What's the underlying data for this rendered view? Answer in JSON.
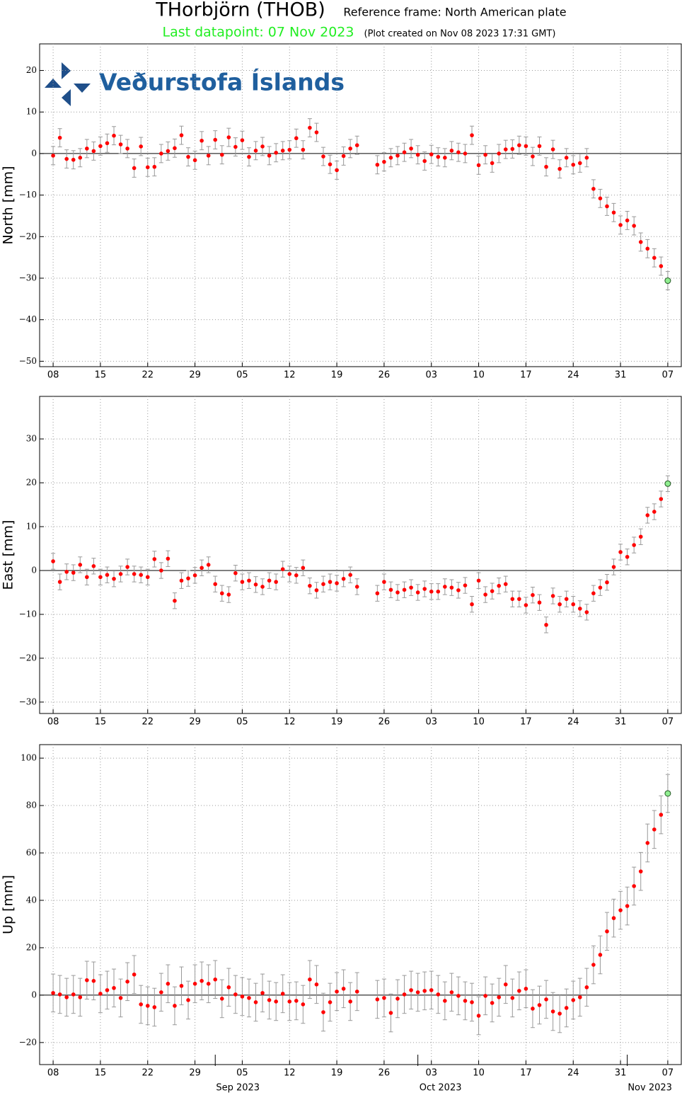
{
  "header": {
    "title": "THorbjörn (THOB)",
    "reference": "Reference frame: North American plate",
    "last_datapoint": "Last datapoint: 07 Nov 2023",
    "created": "(Plot created on Nov 08 2023 17:31 GMT)",
    "logo": "Veðurstofa Íslands"
  },
  "chart_data": [
    {
      "type": "scatter",
      "ylabel": "North [mm]",
      "grid": true,
      "x": [
        "2023-08-08",
        "2023-08-09",
        "2023-08-10",
        "2023-08-11",
        "2023-08-12",
        "2023-08-13",
        "2023-08-14",
        "2023-08-15",
        "2023-08-16",
        "2023-08-17",
        "2023-08-18",
        "2023-08-19",
        "2023-08-20",
        "2023-08-21",
        "2023-08-22",
        "2023-08-23",
        "2023-08-24",
        "2023-08-25",
        "2023-08-26",
        "2023-08-27",
        "2023-08-28",
        "2023-08-29",
        "2023-08-30",
        "2023-08-31",
        "2023-09-01",
        "2023-09-02",
        "2023-09-03",
        "2023-09-04",
        "2023-09-05",
        "2023-09-06",
        "2023-09-07",
        "2023-09-08",
        "2023-09-09",
        "2023-09-10",
        "2023-09-11",
        "2023-09-12",
        "2023-09-13",
        "2023-09-14",
        "2023-09-15",
        "2023-09-16",
        "2023-09-17",
        "2023-09-18",
        "2023-09-19",
        "2023-09-20",
        "2023-09-21",
        "2023-09-22",
        "2023-09-23",
        "2023-09-24",
        "2023-09-25",
        "2023-09-26",
        "2023-09-27",
        "2023-09-28",
        "2023-09-29",
        "2023-09-30",
        "2023-10-01",
        "2023-10-02",
        "2023-10-03",
        "2023-10-04",
        "2023-10-05",
        "2023-10-06",
        "2023-10-07",
        "2023-10-08",
        "2023-10-09",
        "2023-10-10",
        "2023-10-11",
        "2023-10-12",
        "2023-10-13",
        "2023-10-14",
        "2023-10-15",
        "2023-10-16",
        "2023-10-17",
        "2023-10-18",
        "2023-10-19",
        "2023-10-20",
        "2023-10-21",
        "2023-10-22",
        "2023-10-23",
        "2023-10-24",
        "2023-10-25",
        "2023-10-26",
        "2023-10-27",
        "2023-10-28",
        "2023-10-29",
        "2023-10-30",
        "2023-10-31",
        "2023-11-01",
        "2023-11-02",
        "2023-11-03",
        "2023-11-04",
        "2023-11-05",
        "2023-11-06",
        "2023-11-07"
      ],
      "series": [
        {
          "color": "#ff0000",
          "last_color": "#90ee90",
          "error": 2.2,
          "values": [
            -0.5,
            3.8,
            -1.3,
            -1.5,
            -1,
            1.2,
            0.6,
            1.8,
            2.5,
            4.3,
            2.2,
            1.2,
            -3.5,
            1.7,
            -3.3,
            -3.2,
            0,
            0.6,
            1.3,
            4.4,
            -0.8,
            -1.6,
            3.1,
            -0.5,
            3.3,
            -0.3,
            3.9,
            1.6,
            3.2,
            -0.8,
            0.7,
            1.7,
            -0.5,
            0.2,
            0.7,
            0.9,
            3.7,
            0.9,
            6.2,
            5.1,
            -0.7,
            -2.6,
            -4,
            -0.6,
            1.2,
            2.0,
            null,
            null,
            -2.7,
            -2,
            -1,
            -0.5,
            0.3,
            1.2,
            -0.3,
            -1.8,
            -0.2,
            -0.8,
            -1,
            0.7,
            0.3,
            0,
            4.4,
            -2.8,
            -0.3,
            -2.3,
            0,
            1,
            1.1,
            2,
            1.8,
            -0.7,
            1.8,
            -3.2,
            1,
            -3.7,
            -1,
            -2.7,
            -2.3,
            -1,
            -8.5,
            -10.8,
            -12.7,
            -14.2,
            -17.2,
            -16.1,
            -17.4,
            -21.3,
            -22.9,
            -25.1,
            -27.1,
            -30.6
          ]
        }
      ],
      "xlim": [
        "2023-08-06",
        "2023-11-09"
      ],
      "xticks": [
        {
          "value": "2023-08-08",
          "label": "08"
        },
        {
          "value": "2023-08-15",
          "label": "15"
        },
        {
          "value": "2023-08-22",
          "label": "22"
        },
        {
          "value": "2023-08-29",
          "label": "29"
        },
        {
          "value": "2023-09-05",
          "label": "05"
        },
        {
          "value": "2023-09-12",
          "label": "12"
        },
        {
          "value": "2023-09-19",
          "label": "19"
        },
        {
          "value": "2023-09-26",
          "label": "26"
        },
        {
          "value": "2023-10-03",
          "label": "03"
        },
        {
          "value": "2023-10-10",
          "label": "10"
        },
        {
          "value": "2023-10-17",
          "label": "17"
        },
        {
          "value": "2023-10-24",
          "label": "24"
        },
        {
          "value": "2023-10-31",
          "label": "31"
        },
        {
          "value": "2023-11-07",
          "label": "07"
        }
      ],
      "ylim": [
        -51.3,
        26.4
      ],
      "yticks": [
        {
          "value": -50,
          "label": "−50"
        },
        {
          "value": -40,
          "label": "−40"
        },
        {
          "value": -30,
          "label": "−30"
        },
        {
          "value": -20,
          "label": "−20"
        },
        {
          "value": -10,
          "label": "−10"
        },
        0,
        10,
        20
      ]
    },
    {
      "type": "scatter",
      "ylabel": "East [mm]",
      "grid": true,
      "x": [
        "2023-08-08",
        "2023-08-09",
        "2023-08-10",
        "2023-08-11",
        "2023-08-12",
        "2023-08-13",
        "2023-08-14",
        "2023-08-15",
        "2023-08-16",
        "2023-08-17",
        "2023-08-18",
        "2023-08-19",
        "2023-08-20",
        "2023-08-21",
        "2023-08-22",
        "2023-08-23",
        "2023-08-24",
        "2023-08-25",
        "2023-08-26",
        "2023-08-27",
        "2023-08-28",
        "2023-08-29",
        "2023-08-30",
        "2023-08-31",
        "2023-09-01",
        "2023-09-02",
        "2023-09-03",
        "2023-09-04",
        "2023-09-05",
        "2023-09-06",
        "2023-09-07",
        "2023-09-08",
        "2023-09-09",
        "2023-09-10",
        "2023-09-11",
        "2023-09-12",
        "2023-09-13",
        "2023-09-14",
        "2023-09-15",
        "2023-09-16",
        "2023-09-17",
        "2023-09-18",
        "2023-09-19",
        "2023-09-20",
        "2023-09-21",
        "2023-09-22",
        "2023-09-23",
        "2023-09-24",
        "2023-09-25",
        "2023-09-26",
        "2023-09-27",
        "2023-09-28",
        "2023-09-29",
        "2023-09-30",
        "2023-10-01",
        "2023-10-02",
        "2023-10-03",
        "2023-10-04",
        "2023-10-05",
        "2023-10-06",
        "2023-10-07",
        "2023-10-08",
        "2023-10-09",
        "2023-10-10",
        "2023-10-11",
        "2023-10-12",
        "2023-10-13",
        "2023-10-14",
        "2023-10-15",
        "2023-10-16",
        "2023-10-17",
        "2023-10-18",
        "2023-10-19",
        "2023-10-20",
        "2023-10-21",
        "2023-10-22",
        "2023-10-23",
        "2023-10-24",
        "2023-10-25",
        "2023-10-26",
        "2023-10-27",
        "2023-10-28",
        "2023-10-29",
        "2023-10-30",
        "2023-10-31",
        "2023-11-01",
        "2023-11-02",
        "2023-11-03",
        "2023-11-04",
        "2023-11-05",
        "2023-11-06",
        "2023-11-07"
      ],
      "series": [
        {
          "color": "#ff0000",
          "last_color": "#90ee90",
          "error": 1.8,
          "values": [
            2.1,
            -2.6,
            -0.3,
            -0.5,
            1.3,
            -1.5,
            1.0,
            -1.5,
            -1,
            -1.9,
            -0.8,
            0.8,
            -0.8,
            -1,
            -1.5,
            2.6,
            0,
            2.7,
            -6.9,
            -2.3,
            -1.8,
            -1.1,
            0.6,
            1.3,
            -3.1,
            -5.2,
            -5.5,
            -0.6,
            -2.6,
            -2.3,
            -3.2,
            -3.7,
            -2.3,
            -2.6,
            0.3,
            -0.8,
            -1.1,
            0.6,
            -3.5,
            -4.5,
            -3.1,
            -2.6,
            -2.9,
            -1.9,
            -1,
            -3.7,
            null,
            null,
            -5.2,
            -2.6,
            -4.4,
            -5,
            -4.4,
            -3.9,
            -5,
            -4.2,
            -4.8,
            -4.8,
            -3.7,
            -3.9,
            -4.5,
            -3.4,
            -7.7,
            -2.3,
            -5.5,
            -4.7,
            -3.5,
            -3.1,
            -6.5,
            -6.5,
            -7.9,
            -5.6,
            -7.3,
            -12.4,
            -5.8,
            -7.7,
            -6.5,
            -7.7,
            -8.7,
            -9.5,
            -5.2,
            -3.9,
            -2.7,
            0.8,
            4.2,
            3.1,
            5.8,
            7.7,
            12.6,
            13.4,
            16.3,
            19.8
          ]
        }
      ],
      "xlim": [
        "2023-08-06",
        "2023-11-09"
      ],
      "xticks": [
        {
          "value": "2023-08-08",
          "label": "08"
        },
        {
          "value": "2023-08-15",
          "label": "15"
        },
        {
          "value": "2023-08-22",
          "label": "22"
        },
        {
          "value": "2023-08-29",
          "label": "29"
        },
        {
          "value": "2023-09-05",
          "label": "05"
        },
        {
          "value": "2023-09-12",
          "label": "12"
        },
        {
          "value": "2023-09-19",
          "label": "19"
        },
        {
          "value": "2023-09-26",
          "label": "26"
        },
        {
          "value": "2023-10-03",
          "label": "03"
        },
        {
          "value": "2023-10-10",
          "label": "10"
        },
        {
          "value": "2023-10-17",
          "label": "17"
        },
        {
          "value": "2023-10-24",
          "label": "24"
        },
        {
          "value": "2023-10-31",
          "label": "31"
        },
        {
          "value": "2023-11-07",
          "label": "07"
        }
      ],
      "ylim": [
        -32.6,
        39.7
      ],
      "yticks": [
        {
          "value": -30,
          "label": "−30"
        },
        {
          "value": -20,
          "label": "−20"
        },
        {
          "value": -10,
          "label": "−10"
        },
        0,
        10,
        20,
        30
      ]
    },
    {
      "type": "scatter",
      "ylabel": "Up [mm]",
      "grid": true,
      "x": [
        "2023-08-08",
        "2023-08-09",
        "2023-08-10",
        "2023-08-11",
        "2023-08-12",
        "2023-08-13",
        "2023-08-14",
        "2023-08-15",
        "2023-08-16",
        "2023-08-17",
        "2023-08-18",
        "2023-08-19",
        "2023-08-20",
        "2023-08-21",
        "2023-08-22",
        "2023-08-23",
        "2023-08-24",
        "2023-08-25",
        "2023-08-26",
        "2023-08-27",
        "2023-08-28",
        "2023-08-29",
        "2023-08-30",
        "2023-08-31",
        "2023-09-01",
        "2023-09-02",
        "2023-09-03",
        "2023-09-04",
        "2023-09-05",
        "2023-09-06",
        "2023-09-07",
        "2023-09-08",
        "2023-09-09",
        "2023-09-10",
        "2023-09-11",
        "2023-09-12",
        "2023-09-13",
        "2023-09-14",
        "2023-09-15",
        "2023-09-16",
        "2023-09-17",
        "2023-09-18",
        "2023-09-19",
        "2023-09-20",
        "2023-09-21",
        "2023-09-22",
        "2023-09-23",
        "2023-09-24",
        "2023-09-25",
        "2023-09-26",
        "2023-09-27",
        "2023-09-28",
        "2023-09-29",
        "2023-09-30",
        "2023-10-01",
        "2023-10-02",
        "2023-10-03",
        "2023-10-04",
        "2023-10-05",
        "2023-10-06",
        "2023-10-07",
        "2023-10-08",
        "2023-10-09",
        "2023-10-10",
        "2023-10-11",
        "2023-10-12",
        "2023-10-13",
        "2023-10-14",
        "2023-10-15",
        "2023-10-16",
        "2023-10-17",
        "2023-10-18",
        "2023-10-19",
        "2023-10-20",
        "2023-10-21",
        "2023-10-22",
        "2023-10-23",
        "2023-10-24",
        "2023-10-25",
        "2023-10-26",
        "2023-10-27",
        "2023-10-28",
        "2023-10-29",
        "2023-10-30",
        "2023-10-31",
        "2023-11-01",
        "2023-11-02",
        "2023-11-03",
        "2023-11-04",
        "2023-11-05",
        "2023-11-06",
        "2023-11-07"
      ],
      "series": [
        {
          "color": "#ff0000",
          "last_color": "#90ee90",
          "error": 8,
          "values": [
            0.9,
            0.3,
            -0.9,
            0.3,
            -0.9,
            6.3,
            6,
            0.6,
            2.1,
            3,
            -1.2,
            5.7,
            8.7,
            -3.9,
            -4.5,
            -5.1,
            1.2,
            4.8,
            -4.5,
            3.9,
            -2.1,
            4.8,
            6,
            4.8,
            6.6,
            -1.5,
            3.3,
            0.3,
            -0.6,
            -1.2,
            -3,
            0.9,
            -2.1,
            -2.7,
            0.6,
            -2.7,
            -2.4,
            -3.9,
            6.6,
            4.5,
            -7.2,
            -3,
            1.5,
            2.7,
            -2.7,
            1.5,
            null,
            null,
            -1.8,
            -1.2,
            -7.5,
            -1.5,
            0.3,
            2.1,
            1.2,
            1.8,
            2.1,
            0.3,
            -2.4,
            1.2,
            -0.3,
            -2.4,
            -3,
            -8.7,
            -0.3,
            -3.3,
            -0.9,
            4.5,
            -1.2,
            1.8,
            2.7,
            -5.7,
            -4.2,
            -1.8,
            -6.9,
            -7.8,
            -5.4,
            -2.1,
            -0.9,
            3.3,
            12.8,
            17,
            26.9,
            32.5,
            35.8,
            37.6,
            46,
            52.2,
            64.2,
            69.9,
            76.1,
            85.1
          ]
        }
      ],
      "xlim": [
        "2023-08-06",
        "2023-11-09"
      ],
      "xticks": [
        {
          "value": "2023-08-08",
          "label": "08"
        },
        {
          "value": "2023-08-15",
          "label": "15"
        },
        {
          "value": "2023-08-22",
          "label": "22"
        },
        {
          "value": "2023-08-29",
          "label": "29"
        },
        {
          "value": "2023-09-05",
          "label": "05"
        },
        {
          "value": "2023-09-12",
          "label": "12"
        },
        {
          "value": "2023-09-19",
          "label": "19"
        },
        {
          "value": "2023-09-26",
          "label": "26"
        },
        {
          "value": "2023-10-03",
          "label": "03"
        },
        {
          "value": "2023-10-10",
          "label": "10"
        },
        {
          "value": "2023-10-17",
          "label": "17"
        },
        {
          "value": "2023-10-24",
          "label": "24"
        },
        {
          "value": "2023-10-31",
          "label": "31"
        },
        {
          "value": "2023-11-07",
          "label": "07"
        }
      ],
      "month_ticks": [
        {
          "value": "2023-09-01",
          "label": "Sep 2023"
        },
        {
          "value": "2023-10-01",
          "label": "Oct 2023"
        },
        {
          "value": "2023-11-01",
          "label": "Nov 2023"
        }
      ],
      "ylim": [
        -29.3,
        105.7
      ],
      "yticks": [
        {
          "value": -20,
          "label": "−20"
        },
        0,
        20,
        40,
        60,
        80,
        100
      ]
    }
  ]
}
